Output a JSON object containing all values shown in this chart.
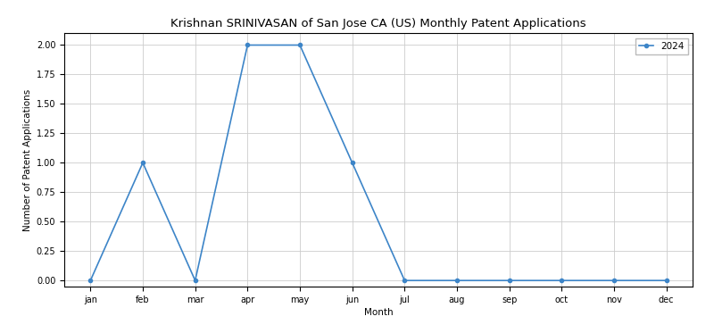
{
  "title": "Krishnan SRINIVASAN of San Jose CA (US) Monthly Patent Applications",
  "xlabel": "Month",
  "ylabel": "Number of Patent Applications",
  "months": [
    "jan",
    "feb",
    "mar",
    "apr",
    "may",
    "jun",
    "jul",
    "aug",
    "sep",
    "oct",
    "nov",
    "dec"
  ],
  "values": [
    0,
    1,
    0,
    2,
    2,
    1,
    0,
    0,
    0,
    0,
    0,
    0
  ],
  "legend_label": "2024",
  "line_color": "#3d85c8",
  "marker": "o",
  "marker_size": 3,
  "linewidth": 1.2,
  "ylim": [
    -0.05,
    2.1
  ],
  "yticks": [
    0.0,
    0.25,
    0.5,
    0.75,
    1.0,
    1.25,
    1.5,
    1.75,
    2.0
  ],
  "background_color": "#ffffff",
  "grid_color": "#cccccc",
  "title_fontsize": 9.5,
  "axis_label_fontsize": 7.5,
  "tick_fontsize": 7,
  "legend_fontsize": 7.5
}
